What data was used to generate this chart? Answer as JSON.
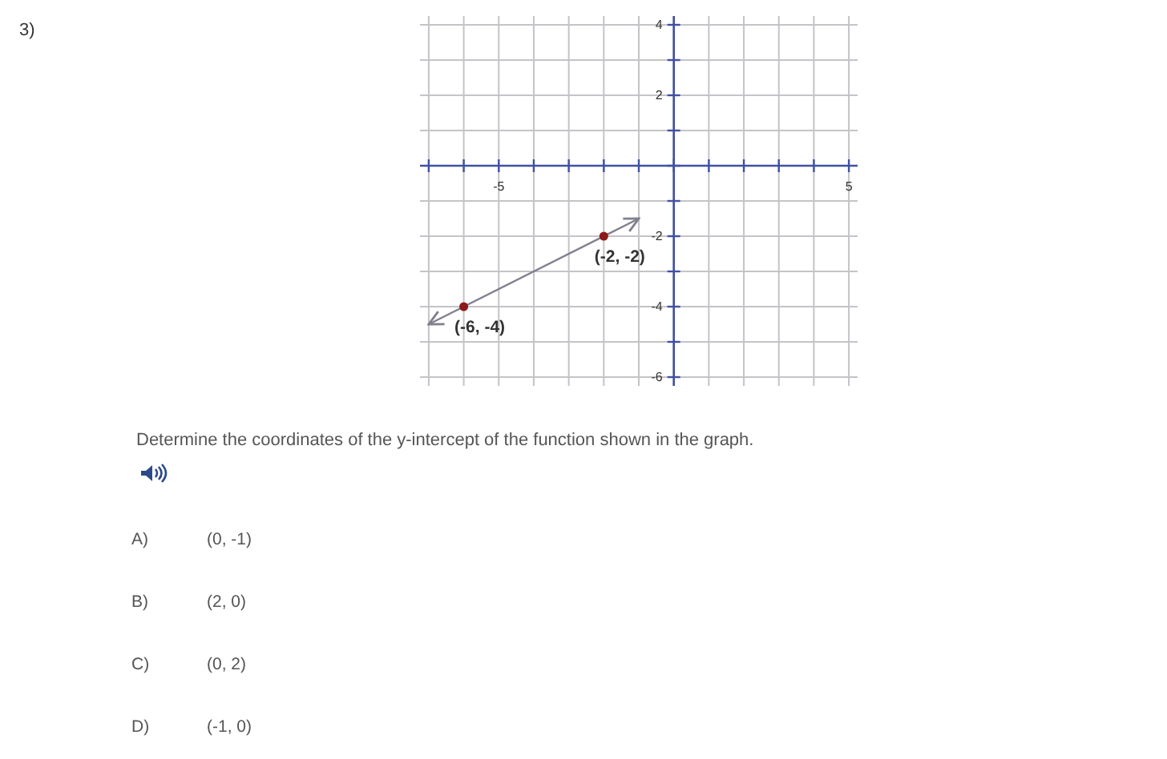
{
  "chart_data": {
    "type": "line",
    "xlim": [
      -7.25,
      5.25
    ],
    "ylim": [
      -6.25,
      4.25
    ],
    "xticks": [
      {
        "value": -7,
        "label": null
      },
      {
        "value": -6,
        "label": null
      },
      -5,
      {
        "value": -4,
        "label": null
      },
      {
        "value": -3,
        "label": null
      },
      {
        "value": -2,
        "label": null
      },
      {
        "value": -1,
        "label": null
      },
      {
        "value": 0,
        "label": null
      },
      {
        "value": 1,
        "label": null
      },
      {
        "value": 2,
        "label": null
      },
      {
        "value": 3,
        "label": null
      },
      {
        "value": 4,
        "label": null
      },
      5
    ],
    "yticks": [
      -6,
      {
        "value": -5,
        "label": null
      },
      -4,
      {
        "value": -3,
        "label": null
      },
      -2,
      {
        "value": -1,
        "label": null
      },
      {
        "value": 0,
        "label": null
      },
      {
        "value": 1,
        "label": null
      },
      2,
      {
        "value": 3,
        "label": null
      },
      4
    ],
    "grid": true,
    "series": [
      {
        "color": "#80808e",
        "marker": "none",
        "x": [
          -7,
          -1
        ],
        "values": [
          -4.5,
          -1.5
        ]
      },
      {
        "type": "scatter",
        "color": "#8b1a1a",
        "marker": "circle",
        "x": [
          -6,
          -2
        ],
        "values": [
          -4,
          -2
        ]
      }
    ],
    "annotations": [
      {
        "text": "(-2, -2)",
        "x": -2,
        "y": -2
      },
      {
        "text": "(-6, -4)",
        "x": -6,
        "y": -4
      },
      "3)",
      "Determine the coordinates of the y-intercept of the function shown in the graph.",
      "A)",
      "(0, -1)",
      "B)",
      "(2, 0)",
      "C)",
      "(0, 2)",
      "D)",
      "(-1, 0)"
    ]
  }
}
